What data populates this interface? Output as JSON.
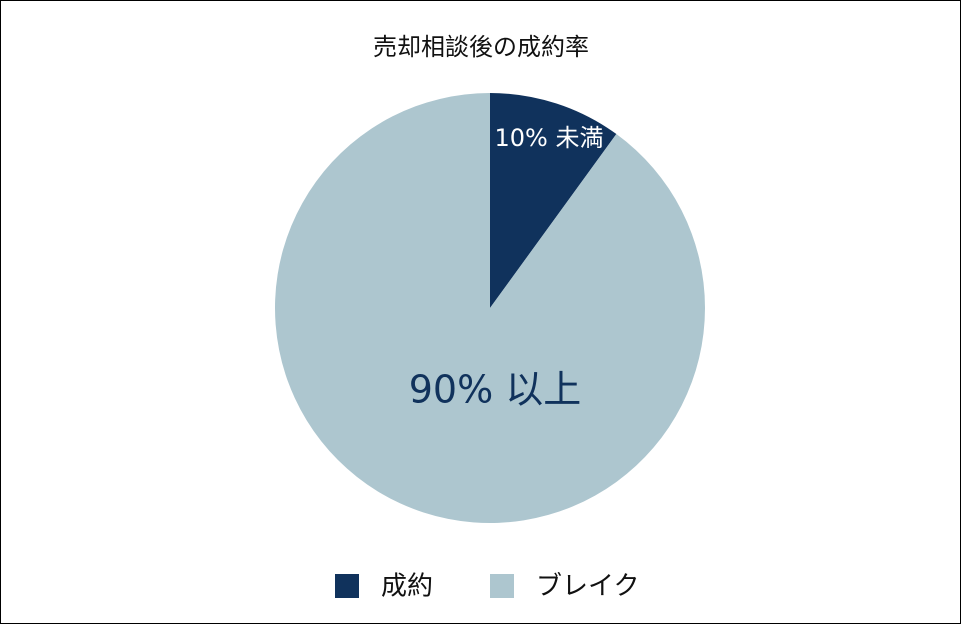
{
  "chart_data": {
    "type": "pie",
    "title": "売却相談後の成約率",
    "categories": [
      "成約",
      "ブレイク"
    ],
    "values": [
      10,
      90
    ],
    "value_labels": [
      "10% 未満",
      "90% 以上"
    ],
    "colors": [
      "#10325c",
      "#adc6cf"
    ],
    "legend": "bottom"
  }
}
